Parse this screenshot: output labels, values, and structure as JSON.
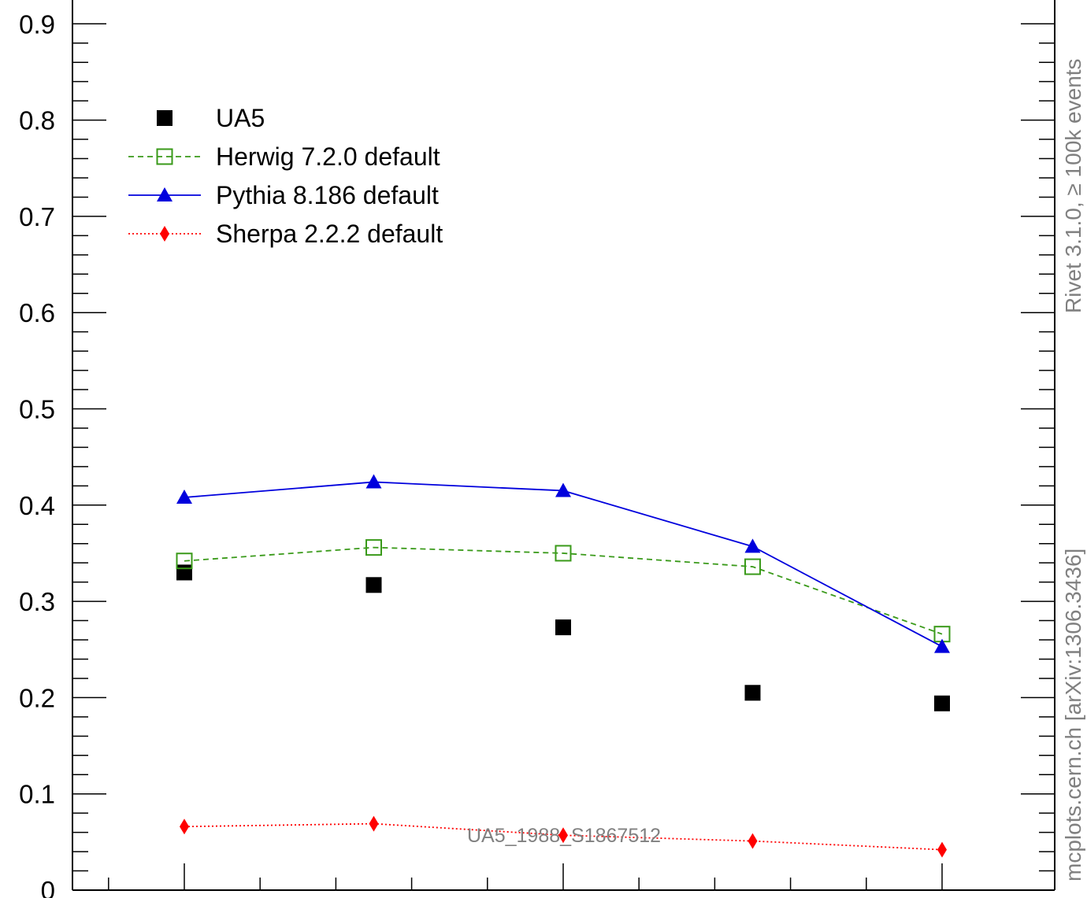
{
  "chart_data": {
    "type": "scatter",
    "x": [
      1,
      2,
      3,
      4,
      5
    ],
    "ylim": [
      0,
      0.9
    ],
    "yticks": [
      "0",
      "0.1",
      "0.2",
      "0.3",
      "0.4",
      "0.5",
      "0.6",
      "0.7",
      "0.8",
      "0.9"
    ],
    "legend_position": "top-left",
    "series": [
      {
        "name": "UA5",
        "marker": "square-filled",
        "line": "none",
        "color": "#000000",
        "values": [
          0.33,
          0.317,
          0.273,
          0.205,
          0.194
        ]
      },
      {
        "name": "Herwig 7.2.0 default",
        "marker": "square-open",
        "line": "dashed",
        "color": "#3a9a1a",
        "values": [
          0.342,
          0.356,
          0.35,
          0.336,
          0.266
        ]
      },
      {
        "name": "Pythia 8.186 default",
        "marker": "triangle-filled",
        "line": "solid",
        "color": "#0000dd",
        "values": [
          0.408,
          0.424,
          0.415,
          0.357,
          0.253
        ]
      },
      {
        "name": "Sherpa 2.2.2 default",
        "marker": "diamond-filled",
        "line": "dotted",
        "color": "#ff0000",
        "values": [
          0.066,
          0.069,
          0.057,
          0.051,
          0.042
        ]
      }
    ],
    "watermark": "UA5_1988_S1867512",
    "side_labels": {
      "top": "Rivet 3.1.0, ≥ 100k events",
      "bottom": "mcplots.cern.ch [arXiv:1306.3436]"
    }
  }
}
